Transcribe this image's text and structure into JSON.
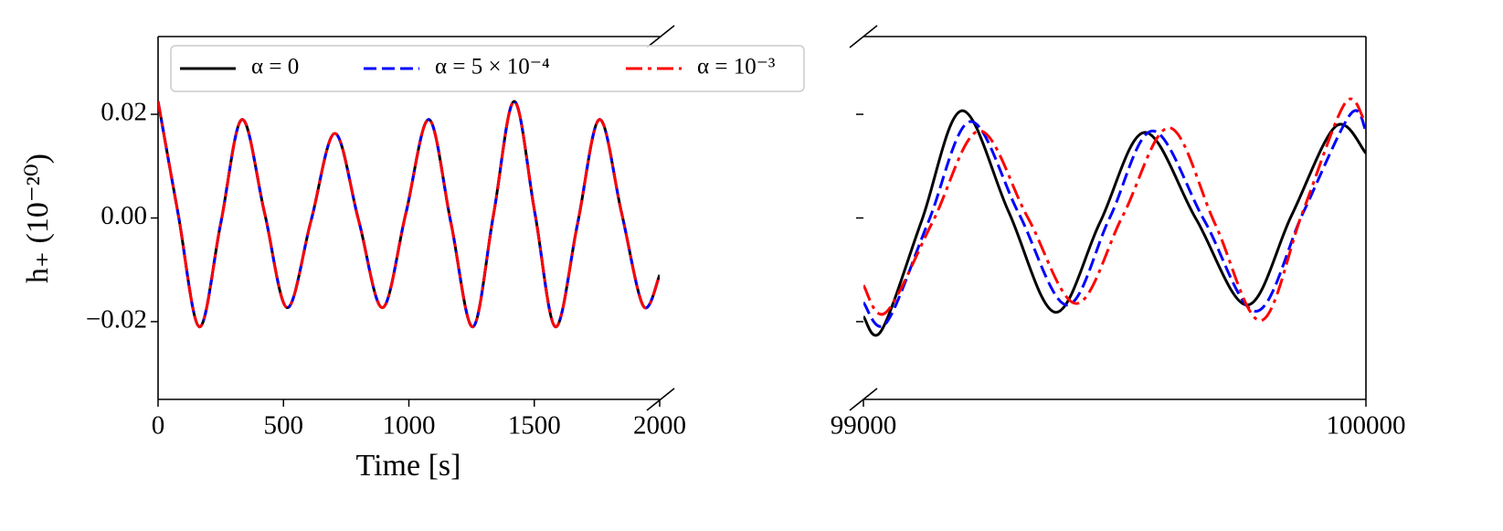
{
  "chart_data": [
    {
      "type": "line",
      "xlabel": "Time [s]",
      "ylabel": "h₊ (10⁻²⁰)",
      "xlim": [
        0,
        2000
      ],
      "xticks": [
        0,
        500,
        1000,
        1500,
        2000
      ],
      "ylim": [
        -0.035,
        0.035
      ],
      "yticks": [
        {
          "value": -0.02,
          "label": "−0.02"
        },
        {
          "value": 0,
          "label": "0.00"
        },
        {
          "value": 0.02,
          "label": "0.02"
        }
      ],
      "legend": "upper left",
      "x": [
        0,
        80,
        165,
        250,
        335,
        425,
        515,
        610,
        705,
        800,
        895,
        988,
        1080,
        1168,
        1255,
        1338,
        1420,
        1503,
        1585,
        1673,
        1760,
        1848,
        1935,
        2000
      ],
      "series": [
        {
          "name": "α = 0",
          "color": "#000000",
          "linestyle": "solid",
          "values": [
            0.0225,
            0.0008,
            -0.021,
            -0.001,
            0.019,
            0.0009,
            -0.0173,
            -0.0005,
            0.0163,
            -0.0005,
            -0.0173,
            0.0009,
            0.019,
            -0.001,
            -0.021,
            0.0008,
            0.0225,
            0.0008,
            -0.021,
            -0.001,
            0.019,
            0.001,
            -0.017,
            -0.011
          ]
        },
        {
          "name": "α = 5 × 10⁻⁴",
          "color": "#0000ff",
          "linestyle": "dashed",
          "values": [
            0.0225,
            0.0008,
            -0.021,
            -0.001,
            0.019,
            0.0009,
            -0.0173,
            -0.0005,
            0.0163,
            -0.0005,
            -0.0173,
            0.0009,
            0.019,
            -0.001,
            -0.021,
            0.0008,
            0.0225,
            0.0008,
            -0.021,
            -0.001,
            0.019,
            0.001,
            -0.017,
            -0.011
          ]
        },
        {
          "name": "α = 10⁻³",
          "color": "#ff0000",
          "linestyle": "dashdot",
          "values": [
            0.0225,
            0.0008,
            -0.021,
            -0.001,
            0.019,
            0.0009,
            -0.0173,
            -0.0005,
            0.0163,
            -0.0005,
            -0.0173,
            0.0009,
            0.019,
            -0.001,
            -0.021,
            0.0008,
            0.0225,
            0.0008,
            -0.021,
            -0.001,
            0.019,
            0.001,
            -0.017,
            -0.011
          ]
        }
      ]
    },
    {
      "type": "line",
      "xlim": [
        99000,
        100000
      ],
      "xticks": [
        99000,
        100000
      ],
      "ylim": [
        -0.035,
        0.035
      ],
      "yticks": [
        -0.02,
        0,
        0.02
      ],
      "ytick_labels": false,
      "series": [
        {
          "color": "#000000",
          "linestyle": "solid",
          "x": [
            99000,
            99036,
            99116,
            99196,
            99289,
            99382,
            99471,
            99560,
            99662,
            99764,
            99852,
            99940,
            100000
          ],
          "values": [
            -0.019,
            -0.0217,
            -0.0005,
            0.0207,
            0.0012,
            -0.0182,
            -0.0008,
            0.0165,
            -0.0002,
            -0.0168,
            0.0005,
            0.0177,
            0.0125
          ]
        },
        {
          "color": "#0000ff",
          "linestyle": "dashed",
          "x": [
            99000,
            99045,
            99129,
            99213,
            99309,
            99405,
            99490,
            99576,
            99679,
            99782,
            99875,
            99969,
            100000
          ],
          "values": [
            -0.0163,
            -0.0203,
            -0.0008,
            0.0186,
            0.0009,
            -0.0168,
            0,
            0.0168,
            -0.0006,
            -0.018,
            0.001,
            0.02,
            0.0168
          ]
        },
        {
          "color": "#ff0000",
          "linestyle": "dashdot",
          "x": [
            99000,
            99045,
            99138,
            99231,
            99327,
            99424,
            99516,
            99609,
            99700,
            99791,
            99874,
            99958,
            99996
          ],
          "values": [
            -0.013,
            -0.0182,
            -0.0007,
            0.0168,
            0.0001,
            -0.0165,
            0.0004,
            0.0174,
            -0.0012,
            -0.0198,
            0.0011,
            0.0221,
            0.0191
          ]
        }
      ]
    }
  ]
}
